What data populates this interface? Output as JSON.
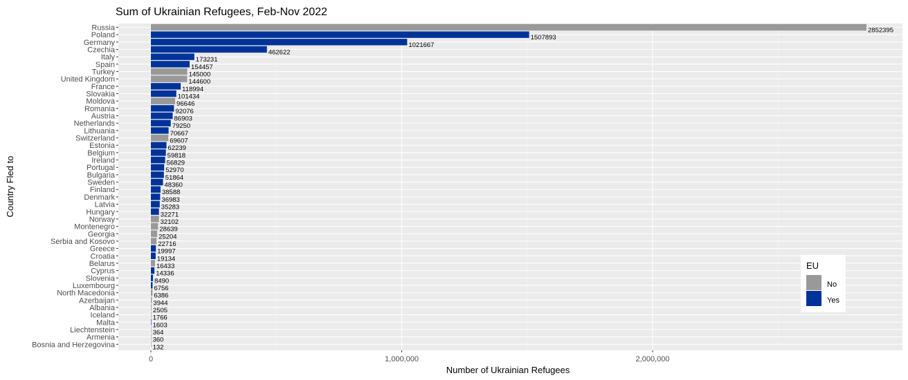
{
  "chart_data": {
    "type": "bar",
    "orientation": "horizontal",
    "title": "Sum of Ukrainian Refugees, Feb-Nov 2022",
    "xlabel": "Number of Ukrainian Refugees",
    "ylabel": "Country Fled to",
    "xlim": [
      0,
      2952395
    ],
    "xticks": [
      0,
      1000000,
      2000000
    ],
    "xtick_labels": [
      "0",
      "1,000,000",
      "2,000,000"
    ],
    "grid": true,
    "legend": {
      "title": "EU",
      "position": "bottom-right",
      "entries": [
        {
          "key": "No",
          "label": "No",
          "color": "#999999"
        },
        {
          "key": "Yes",
          "label": "Yes",
          "color": "#003399"
        }
      ]
    },
    "categories": [
      "Russia",
      "Poland",
      "Germany",
      "Czechia",
      "Italy",
      "Spain",
      "Turkey",
      "United Kingdom",
      "France",
      "Slovakia",
      "Moldova",
      "Romania",
      "Austria",
      "Netherlands",
      "Lithuania",
      "Switzerland",
      "Estonia",
      "Belgium",
      "Ireland",
      "Portugal",
      "Bulgaria",
      "Sweden",
      "Finland",
      "Denmark",
      "Latvia",
      "Hungary",
      "Norway",
      "Montenegro",
      "Georgia",
      "Serbia and Kosovo",
      "Greece",
      "Croatia",
      "Belarus",
      "Cyprus",
      "Slovenia",
      "Luxembourg",
      "North Macedonia",
      "Azerbaijan",
      "Albania",
      "Iceland",
      "Malta",
      "Liechtenstein",
      "Armenia",
      "Bosnia and Herzegovina"
    ],
    "values": [
      2852395,
      1507893,
      1021667,
      462622,
      173231,
      154457,
      145000,
      144600,
      118994,
      101434,
      96646,
      92076,
      86903,
      79250,
      70667,
      69607,
      62239,
      59818,
      56829,
      52970,
      51864,
      48360,
      38588,
      36983,
      35283,
      32271,
      32102,
      28639,
      25204,
      22716,
      19997,
      19134,
      16433,
      14336,
      8490,
      6756,
      6386,
      3944,
      2505,
      1766,
      1603,
      364,
      360,
      132
    ],
    "eu": [
      "No",
      "Yes",
      "Yes",
      "Yes",
      "Yes",
      "Yes",
      "No",
      "No",
      "Yes",
      "Yes",
      "No",
      "Yes",
      "Yes",
      "Yes",
      "Yes",
      "No",
      "Yes",
      "Yes",
      "Yes",
      "Yes",
      "Yes",
      "Yes",
      "Yes",
      "Yes",
      "Yes",
      "Yes",
      "No",
      "No",
      "No",
      "No",
      "Yes",
      "Yes",
      "No",
      "Yes",
      "Yes",
      "Yes",
      "No",
      "No",
      "No",
      "No",
      "Yes",
      "No",
      "No",
      "No"
    ]
  }
}
